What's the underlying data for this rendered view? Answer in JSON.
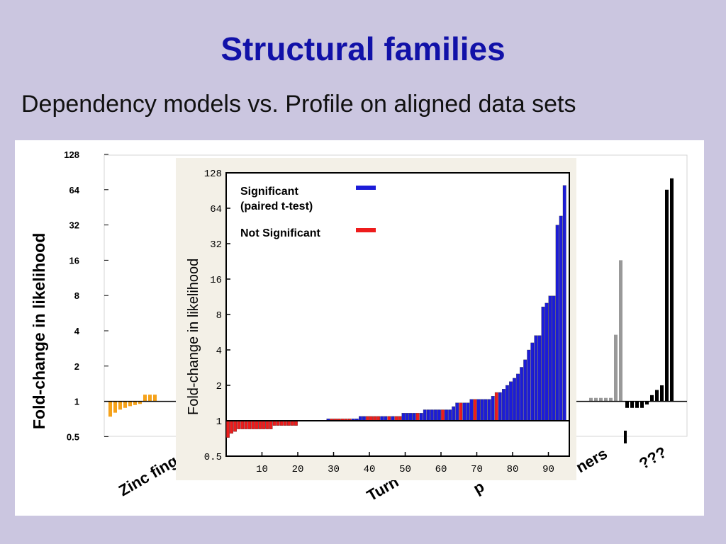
{
  "slide": {
    "title": "Structural families",
    "subtitle": "Dependency models vs. Profile on aligned data sets"
  },
  "chart_data": [
    {
      "type": "bar",
      "title": "",
      "ylabel": "Fold-change in likelihood",
      "y_scale": "log2",
      "ylim": [
        0.5,
        128
      ],
      "y_ticks": [
        "128",
        "64",
        "32",
        "16",
        "8",
        "4",
        "2",
        "1",
        "0.5"
      ],
      "category_labels": [
        "Zinc fing",
        "Turn",
        "p",
        "ners",
        "???"
      ],
      "groups": [
        {
          "label": "Zinc fing",
          "color": "#f5a21b",
          "values": [
            0.74,
            0.8,
            0.85,
            0.88,
            0.91,
            0.93,
            0.95,
            1.14,
            1.14,
            1.14
          ]
        },
        {
          "label": "ners",
          "color": "#999999",
          "values": [
            1.07,
            1.07,
            1.07,
            1.07,
            1.07,
            3.7,
            16
          ]
        },
        {
          "label": "???",
          "color": "#000000",
          "values": [
            0.88,
            0.88,
            0.88,
            0.88,
            0.94,
            1.13,
            1.25,
            1.37,
            64,
            80
          ]
        }
      ]
    },
    {
      "type": "bar",
      "title": "",
      "ylabel": "Fold-change in likelihood",
      "y_scale": "log2",
      "ylim": [
        0.5,
        128
      ],
      "xlim": [
        0,
        95
      ],
      "y_ticks": [
        "128",
        "64",
        "32",
        "16",
        "8",
        "4",
        "2",
        "1",
        "0.5"
      ],
      "x_ticks": [
        "10",
        "20",
        "30",
        "40",
        "50",
        "60",
        "70",
        "80",
        "90"
      ],
      "legend_position": "top-left",
      "series": [
        {
          "name": "Significant\n(paired t-test)",
          "color": "#1c1cd8"
        },
        {
          "name": "Not Significant",
          "color": "#ee1c1c"
        }
      ],
      "bars": [
        {
          "x": 1,
          "y": 0.72,
          "sig": false
        },
        {
          "x": 2,
          "y": 0.78,
          "sig": false
        },
        {
          "x": 3,
          "y": 0.81,
          "sig": false
        },
        {
          "x": 4,
          "y": 0.85,
          "sig": false
        },
        {
          "x": 5,
          "y": 0.85,
          "sig": false
        },
        {
          "x": 6,
          "y": 0.85,
          "sig": false
        },
        {
          "x": 7,
          "y": 0.85,
          "sig": false
        },
        {
          "x": 8,
          "y": 0.85,
          "sig": false
        },
        {
          "x": 9,
          "y": 0.85,
          "sig": false
        },
        {
          "x": 10,
          "y": 0.85,
          "sig": false
        },
        {
          "x": 11,
          "y": 0.85,
          "sig": false
        },
        {
          "x": 12,
          "y": 0.85,
          "sig": false
        },
        {
          "x": 13,
          "y": 0.85,
          "sig": false
        },
        {
          "x": 14,
          "y": 0.91,
          "sig": false
        },
        {
          "x": 15,
          "y": 0.91,
          "sig": false
        },
        {
          "x": 16,
          "y": 0.91,
          "sig": false
        },
        {
          "x": 17,
          "y": 0.91,
          "sig": false
        },
        {
          "x": 18,
          "y": 0.91,
          "sig": false
        },
        {
          "x": 19,
          "y": 0.91,
          "sig": false
        },
        {
          "x": 20,
          "y": 0.91,
          "sig": false
        },
        {
          "x": 29,
          "y": 1.04,
          "sig": true
        },
        {
          "x": 30,
          "y": 1.04,
          "sig": false
        },
        {
          "x": 31,
          "y": 1.04,
          "sig": false
        },
        {
          "x": 32,
          "y": 1.04,
          "sig": false
        },
        {
          "x": 33,
          "y": 1.04,
          "sig": false
        },
        {
          "x": 34,
          "y": 1.04,
          "sig": false
        },
        {
          "x": 35,
          "y": 1.04,
          "sig": false
        },
        {
          "x": 36,
          "y": 1.04,
          "sig": true
        },
        {
          "x": 37,
          "y": 1.04,
          "sig": true
        },
        {
          "x": 38,
          "y": 1.09,
          "sig": true
        },
        {
          "x": 39,
          "y": 1.09,
          "sig": true
        },
        {
          "x": 40,
          "y": 1.09,
          "sig": false
        },
        {
          "x": 41,
          "y": 1.09,
          "sig": false
        },
        {
          "x": 42,
          "y": 1.09,
          "sig": false
        },
        {
          "x": 43,
          "y": 1.09,
          "sig": false
        },
        {
          "x": 44,
          "y": 1.09,
          "sig": true
        },
        {
          "x": 45,
          "y": 1.09,
          "sig": true
        },
        {
          "x": 46,
          "y": 1.09,
          "sig": false
        },
        {
          "x": 47,
          "y": 1.09,
          "sig": true
        },
        {
          "x": 48,
          "y": 1.09,
          "sig": false
        },
        {
          "x": 49,
          "y": 1.09,
          "sig": false
        },
        {
          "x": 50,
          "y": 1.16,
          "sig": true
        },
        {
          "x": 51,
          "y": 1.16,
          "sig": true
        },
        {
          "x": 52,
          "y": 1.16,
          "sig": true
        },
        {
          "x": 53,
          "y": 1.16,
          "sig": true
        },
        {
          "x": 54,
          "y": 1.16,
          "sig": false
        },
        {
          "x": 55,
          "y": 1.16,
          "sig": true
        },
        {
          "x": 56,
          "y": 1.24,
          "sig": true
        },
        {
          "x": 57,
          "y": 1.24,
          "sig": true
        },
        {
          "x": 58,
          "y": 1.24,
          "sig": true
        },
        {
          "x": 59,
          "y": 1.24,
          "sig": true
        },
        {
          "x": 60,
          "y": 1.24,
          "sig": true
        },
        {
          "x": 61,
          "y": 1.24,
          "sig": false
        },
        {
          "x": 62,
          "y": 1.24,
          "sig": true
        },
        {
          "x": 63,
          "y": 1.24,
          "sig": true
        },
        {
          "x": 64,
          "y": 1.32,
          "sig": true
        },
        {
          "x": 65,
          "y": 1.42,
          "sig": true
        },
        {
          "x": 66,
          "y": 1.42,
          "sig": false
        },
        {
          "x": 67,
          "y": 1.42,
          "sig": true
        },
        {
          "x": 68,
          "y": 1.42,
          "sig": true
        },
        {
          "x": 69,
          "y": 1.52,
          "sig": true
        },
        {
          "x": 70,
          "y": 1.52,
          "sig": false
        },
        {
          "x": 71,
          "y": 1.52,
          "sig": true
        },
        {
          "x": 72,
          "y": 1.52,
          "sig": true
        },
        {
          "x": 73,
          "y": 1.52,
          "sig": true
        },
        {
          "x": 74,
          "y": 1.52,
          "sig": true
        },
        {
          "x": 75,
          "y": 1.62,
          "sig": true
        },
        {
          "x": 76,
          "y": 1.74,
          "sig": false
        },
        {
          "x": 77,
          "y": 1.74,
          "sig": true
        },
        {
          "x": 78,
          "y": 1.86,
          "sig": true
        },
        {
          "x": 79,
          "y": 2.0,
          "sig": true
        },
        {
          "x": 80,
          "y": 2.15,
          "sig": true
        },
        {
          "x": 81,
          "y": 2.3,
          "sig": true
        },
        {
          "x": 82,
          "y": 2.5,
          "sig": true
        },
        {
          "x": 83,
          "y": 2.85,
          "sig": true
        },
        {
          "x": 84,
          "y": 3.3,
          "sig": true
        },
        {
          "x": 85,
          "y": 4.0,
          "sig": true
        },
        {
          "x": 86,
          "y": 4.6,
          "sig": true
        },
        {
          "x": 87,
          "y": 5.3,
          "sig": true
        },
        {
          "x": 88,
          "y": 5.3,
          "sig": true
        },
        {
          "x": 89,
          "y": 9.3,
          "sig": true
        },
        {
          "x": 90,
          "y": 10,
          "sig": true
        },
        {
          "x": 91,
          "y": 11.5,
          "sig": true
        },
        {
          "x": 92,
          "y": 11.5,
          "sig": true
        },
        {
          "x": 93,
          "y": 46,
          "sig": true
        },
        {
          "x": 94,
          "y": 55,
          "sig": true
        },
        {
          "x": 95,
          "y": 100,
          "sig": true
        }
      ]
    }
  ]
}
